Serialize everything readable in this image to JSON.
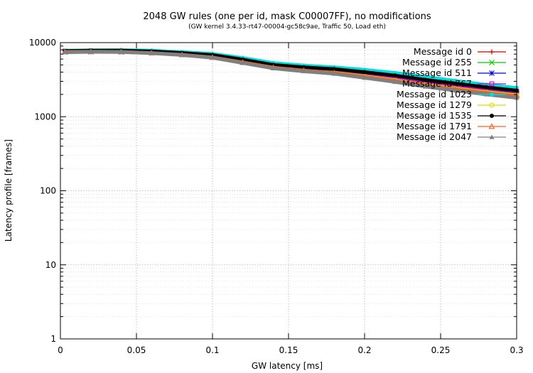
{
  "chart_data": {
    "type": "line",
    "title": "2048 GW rules (one per id, mask C00007FF), no modifications",
    "subtitle": "(GW kernel 3.4.33-rt47-00004-gc58c9ae, Traffic 50, Load eth)",
    "xlabel": "GW latency [ms]",
    "ylabel": "Latency profile [frames]",
    "xlim": [
      0,
      0.3
    ],
    "ylim": [
      1,
      10000
    ],
    "yscale": "log",
    "grid": true,
    "legend_position": "top-right",
    "x_ticks": [
      "0",
      "0.05",
      "0.1",
      "0.15",
      "0.2",
      "0.25",
      "0.3"
    ],
    "y_ticks": [
      "1",
      "10",
      "100",
      "1000",
      "10000"
    ],
    "x": [
      0.003,
      0.02,
      0.04,
      0.06,
      0.08,
      0.1,
      0.12,
      0.14,
      0.16,
      0.18,
      0.2,
      0.22,
      0.24,
      0.26,
      0.28,
      0.3
    ],
    "series": [
      {
        "name": "Message id 0",
        "color": "#cc0000",
        "marker": "plus",
        "values": [
          7600,
          7700,
          7650,
          7400,
          7000,
          6500,
          5600,
          4800,
          4400,
          4100,
          3650,
          3250,
          2850,
          2550,
          2300,
          2100
        ]
      },
      {
        "name": "Message id 255",
        "color": "#00cc00",
        "marker": "cross",
        "values": [
          7500,
          7650,
          7600,
          7350,
          6950,
          6450,
          5550,
          4750,
          4350,
          4050,
          3600,
          3200,
          2800,
          2500,
          2250,
          2050
        ]
      },
      {
        "name": "Message id 511",
        "color": "#0000dd",
        "marker": "star",
        "values": [
          7500,
          7550,
          7500,
          7300,
          6900,
          6400,
          5500,
          4700,
          4300,
          4000,
          3550,
          3150,
          2750,
          2450,
          2200,
          2000
        ]
      },
      {
        "name": "Message id 767",
        "color": "#cc00cc",
        "marker": "square",
        "values": [
          7700,
          7750,
          7700,
          7450,
          7050,
          6550,
          5700,
          4900,
          4500,
          4200,
          3750,
          3350,
          2950,
          2650,
          2400,
          2200
        ]
      },
      {
        "name": "Message id 1023",
        "color": "#00dddd",
        "marker": "circle-filled",
        "values": [
          7800,
          7900,
          7950,
          7800,
          7450,
          7050,
          6200,
          5300,
          4900,
          4650,
          4300,
          3900,
          3450,
          3050,
          2700,
          2450
        ]
      },
      {
        "name": "Message id 1279",
        "color": "#dddd00",
        "marker": "circle",
        "values": [
          7500,
          7600,
          7550,
          7300,
          6900,
          6400,
          5500,
          4650,
          4250,
          3950,
          3500,
          3100,
          2700,
          2400,
          2150,
          1950
        ]
      },
      {
        "name": "Message id 1535",
        "color": "#000000",
        "marker": "circle-filled",
        "values": [
          7700,
          7800,
          7800,
          7600,
          7250,
          6800,
          5900,
          5000,
          4650,
          4400,
          4000,
          3600,
          3150,
          2800,
          2500,
          2250
        ]
      },
      {
        "name": "Message id 1791",
        "color": "#ee6622",
        "marker": "triangle",
        "values": [
          7500,
          7550,
          7500,
          7250,
          6850,
          6300,
          5400,
          4600,
          4200,
          3900,
          3450,
          3050,
          2650,
          2350,
          2100,
          1900
        ]
      },
      {
        "name": "Message id 2047",
        "color": "#808080",
        "marker": "triangle-filled",
        "values": [
          7400,
          7500,
          7450,
          7200,
          6800,
          6250,
          5300,
          4500,
          4100,
          3800,
          3350,
          2950,
          2550,
          2250,
          2000,
          1800
        ]
      }
    ]
  }
}
